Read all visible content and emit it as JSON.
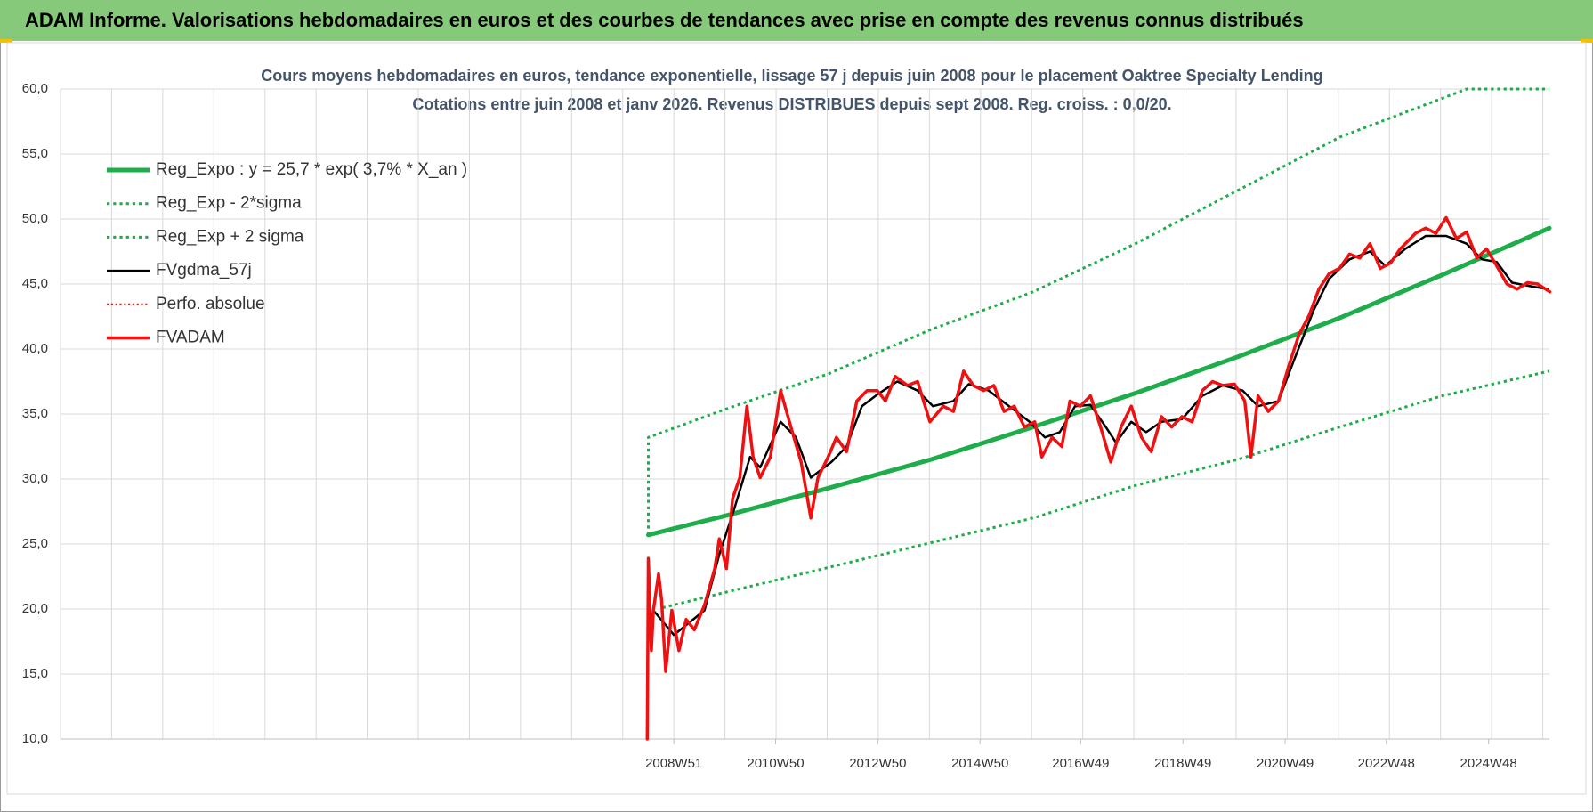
{
  "header": {
    "title": "ADAM Informe. Valorisations hebdomadaires en euros et des courbes de tendances avec prise en compte des revenus connus distribués"
  },
  "chart_data": {
    "type": "line",
    "title": "Cours moyens hebdomadaires en euros, tendance exponentielle, lissage 57 j depuis juin 2008 pour le placement Oaktree Specialty Lending",
    "subtitle": "Cotations entre juin 2008 et janv 2026. Revenus DISTRIBUES depuis sept 2008. Reg. croiss. : 0,0/20.",
    "xlim": [
      1996.97,
      2026.1
    ],
    "xticks": [
      {
        "value": 2008.97,
        "label": "2008W51"
      },
      {
        "value": 2010.96,
        "label": "2010W50"
      },
      {
        "value": 2012.96,
        "label": "2012W50"
      },
      {
        "value": 2014.96,
        "label": "2014W50"
      },
      {
        "value": 2016.93,
        "label": "2016W49"
      },
      {
        "value": 2018.93,
        "label": "2018W49"
      },
      {
        "value": 2020.93,
        "label": "2020W49"
      },
      {
        "value": 2022.91,
        "label": "2022W48"
      },
      {
        "value": 2024.91,
        "label": "2024W48"
      }
    ],
    "xgrid": [
      1996.97,
      1997.97,
      1998.97,
      1999.97,
      2000.97,
      2001.97,
      2002.97,
      2003.97,
      2004.97,
      2005.97,
      2006.97,
      2007.97,
      2008.97,
      2009.97,
      2010.97,
      2011.97,
      2012.97,
      2013.97,
      2014.97,
      2015.97,
      2016.97,
      2017.97,
      2018.97,
      2019.97,
      2020.97,
      2021.97,
      2022.97,
      2023.97,
      2024.97,
      2025.97
    ],
    "ylim": [
      10,
      60
    ],
    "yticks": [
      {
        "value": 10,
        "label": "10,0"
      },
      {
        "value": 15,
        "label": "15,0"
      },
      {
        "value": 20,
        "label": "20,0"
      },
      {
        "value": 25,
        "label": "25,0"
      },
      {
        "value": 30,
        "label": "30,0"
      },
      {
        "value": 35,
        "label": "35,0"
      },
      {
        "value": 40,
        "label": "40,0"
      },
      {
        "value": 45,
        "label": "45,0"
      },
      {
        "value": 50,
        "label": "50,0"
      },
      {
        "value": 55,
        "label": "55,0"
      },
      {
        "value": 60,
        "label": "60,0"
      }
    ],
    "grid": true,
    "legend": "upper left",
    "series": [
      {
        "name": "Reg_Expo : y = 25,7 * exp( 3,7% *  X_an )",
        "color": "#1fad4b",
        "style": "solid",
        "width": 5,
        "x": [
          2008.47,
          2010,
          2012,
          2014,
          2016,
          2018,
          2020,
          2022,
          2024,
          2026.1
        ],
        "values": [
          25.7,
          27.2,
          29.3,
          31.5,
          34.0,
          36.6,
          39.4,
          42.4,
          45.7,
          49.3
        ]
      },
      {
        "name": "Reg_Exp - 2*sigma",
        "color": "#1fad4b",
        "style": "dotted",
        "width": 3,
        "x": [
          2008.75,
          2010,
          2012,
          2014,
          2016,
          2018,
          2020,
          2022,
          2024,
          2026.1
        ],
        "values": [
          20.1,
          21.3,
          23.2,
          25.1,
          27.0,
          29.5,
          31.5,
          34.0,
          36.4,
          38.3
        ]
      },
      {
        "name": "Reg_Exp + 2 sigma",
        "color": "#1fad4b",
        "style": "dotted",
        "width": 3,
        "x": [
          2008.47,
          2008.47,
          2010,
          2012,
          2014,
          2016,
          2018,
          2020,
          2022,
          2024.48,
          2026.1
        ],
        "values": [
          25.7,
          33.2,
          35.4,
          38.1,
          41.5,
          44.4,
          48.1,
          52.2,
          56.3,
          60,
          60
        ]
      },
      {
        "name": "FVgdma_57j",
        "color": "#000000",
        "style": "solid",
        "width": 2.5,
        "x": [
          2008.57,
          2008.97,
          2009.57,
          2009.86,
          2010.16,
          2010.46,
          2010.66,
          2011.06,
          2011.36,
          2011.65,
          2012.05,
          2012.35,
          2012.65,
          2012.95,
          2013.34,
          2013.74,
          2014.04,
          2014.44,
          2014.74,
          2015.13,
          2015.53,
          2015.93,
          2016.23,
          2016.52,
          2016.82,
          2017.12,
          2017.42,
          2017.62,
          2017.92,
          2018.21,
          2018.51,
          2018.91,
          2019.31,
          2019.71,
          2020.1,
          2020.4,
          2020.8,
          2021.1,
          2021.49,
          2021.79,
          2022.19,
          2022.59,
          2022.89,
          2023.28,
          2023.68,
          2024.08,
          2024.48,
          2024.78,
          2025.07,
          2025.37,
          2025.77,
          2026.07
        ],
        "values": [
          19.9,
          18.0,
          19.9,
          24.2,
          27.8,
          31.7,
          30.9,
          34.4,
          33.2,
          30.1,
          31.3,
          32.5,
          35.6,
          36.5,
          37.5,
          36.8,
          35.6,
          36.0,
          37.3,
          36.8,
          35.6,
          34.4,
          33.2,
          33.6,
          35.6,
          35.7,
          34.0,
          32.8,
          34.4,
          33.6,
          34.4,
          34.6,
          36.4,
          37.2,
          36.8,
          35.6,
          36.0,
          39.1,
          43.0,
          45.4,
          46.9,
          47.5,
          46.4,
          47.7,
          48.7,
          48.7,
          48.1,
          46.9,
          46.7,
          45.1,
          44.8,
          44.6
        ]
      },
      {
        "name": "Perfo. absolue",
        "color": "#e02020",
        "style": "dotted",
        "width": 2,
        "x": [],
        "values": []
      },
      {
        "name": "FVADAM",
        "color": "#ee1111",
        "style": "solid",
        "width": 3.5,
        "x": [
          2008.45,
          2008.47,
          2008.53,
          2008.57,
          2008.67,
          2008.73,
          2008.81,
          2008.93,
          2009.07,
          2009.21,
          2009.37,
          2009.57,
          2009.77,
          2009.86,
          2010.0,
          2010.12,
          2010.26,
          2010.4,
          2010.52,
          2010.66,
          2010.86,
          2011.06,
          2011.26,
          2011.46,
          2011.65,
          2011.79,
          2011.99,
          2012.15,
          2012.35,
          2012.55,
          2012.75,
          2012.95,
          2013.11,
          2013.3,
          2013.54,
          2013.74,
          2013.98,
          2014.24,
          2014.44,
          2014.64,
          2014.83,
          2015.03,
          2015.23,
          2015.43,
          2015.63,
          2015.83,
          2016.03,
          2016.17,
          2016.37,
          2016.56,
          2016.72,
          2016.92,
          2017.12,
          2017.32,
          2017.52,
          2017.72,
          2017.92,
          2018.12,
          2018.31,
          2018.51,
          2018.71,
          2018.91,
          2019.11,
          2019.31,
          2019.51,
          2019.71,
          2019.94,
          2020.14,
          2020.26,
          2020.4,
          2020.6,
          2020.8,
          2021.0,
          2021.2,
          2021.4,
          2021.59,
          2021.79,
          2021.99,
          2022.19,
          2022.39,
          2022.59,
          2022.79,
          2022.99,
          2023.18,
          2023.48,
          2023.68,
          2023.88,
          2024.08,
          2024.28,
          2024.48,
          2024.68,
          2024.87,
          2025.07,
          2025.27,
          2025.47,
          2025.67,
          2025.87,
          2026.11
        ],
        "values": [
          10.0,
          23.9,
          16.8,
          19.9,
          22.7,
          20.7,
          15.2,
          19.9,
          16.8,
          19.2,
          18.4,
          20.3,
          23.1,
          25.4,
          23.1,
          28.5,
          30.1,
          35.6,
          31.7,
          30.1,
          31.7,
          36.8,
          34.0,
          31.3,
          27.0,
          30.1,
          31.7,
          33.2,
          32.1,
          36.0,
          36.8,
          36.8,
          36.0,
          37.9,
          37.2,
          37.5,
          34.4,
          35.6,
          35.2,
          38.3,
          37.2,
          36.8,
          37.2,
          35.2,
          35.6,
          34.0,
          34.4,
          31.7,
          33.2,
          32.5,
          36.0,
          35.6,
          36.4,
          34.0,
          31.3,
          34.0,
          35.6,
          33.2,
          32.1,
          34.8,
          34.0,
          34.8,
          34.4,
          36.8,
          37.5,
          37.2,
          37.3,
          36.0,
          31.7,
          36.4,
          35.2,
          36.0,
          38.7,
          41.1,
          42.6,
          44.6,
          45.8,
          46.2,
          47.3,
          47.0,
          48.1,
          46.2,
          46.6,
          47.7,
          48.9,
          49.3,
          48.9,
          50.1,
          48.5,
          49.0,
          47.0,
          47.7,
          46.4,
          45.0,
          44.6,
          45.1,
          45.0,
          44.4
        ]
      }
    ]
  }
}
